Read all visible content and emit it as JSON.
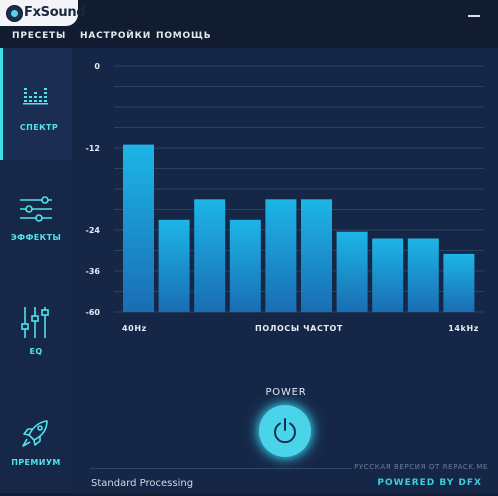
{
  "app": {
    "name": "FxSound"
  },
  "menu": [
    {
      "label": "ПРЕСЕТЫ"
    },
    {
      "label": "НАСТРОЙКИ"
    },
    {
      "label": "ПОМОЩЬ"
    }
  ],
  "nav": [
    {
      "label": "СПЕКТР",
      "icon": "spectrum-icon",
      "active": true
    },
    {
      "label": "ЭФФЕКТЫ",
      "icon": "sliders-horizontal-icon",
      "active": false
    },
    {
      "label": "EQ",
      "icon": "sliders-vertical-icon",
      "active": false
    },
    {
      "label": "ПРЕМИУМ",
      "icon": "rocket-icon",
      "active": false
    }
  ],
  "chart_data": {
    "type": "bar",
    "yticks": [
      "0",
      "-12",
      "-24",
      "-36",
      "-60"
    ],
    "values": [
      -11.5,
      -22.5,
      -19.5,
      -22.5,
      -19.5,
      -19.5,
      -24.5,
      -26.5,
      -26.5,
      -31
    ],
    "xlabel": "ПОЛОСЫ ЧАСТОТ",
    "x_start_label": "40Hz",
    "x_end_label": "14kHz",
    "colors": {
      "bar_top": "#1cb6e6",
      "bar_bottom": "#1a6db3",
      "grid": "#2b4163"
    }
  },
  "power": {
    "label": "POWER"
  },
  "footer": {
    "watermark": "РУССКАЯ ВЕРСИЯ ОТ REPACK.ME",
    "status": "Standard Processing",
    "powered_by": "POWERED BY DFX"
  }
}
